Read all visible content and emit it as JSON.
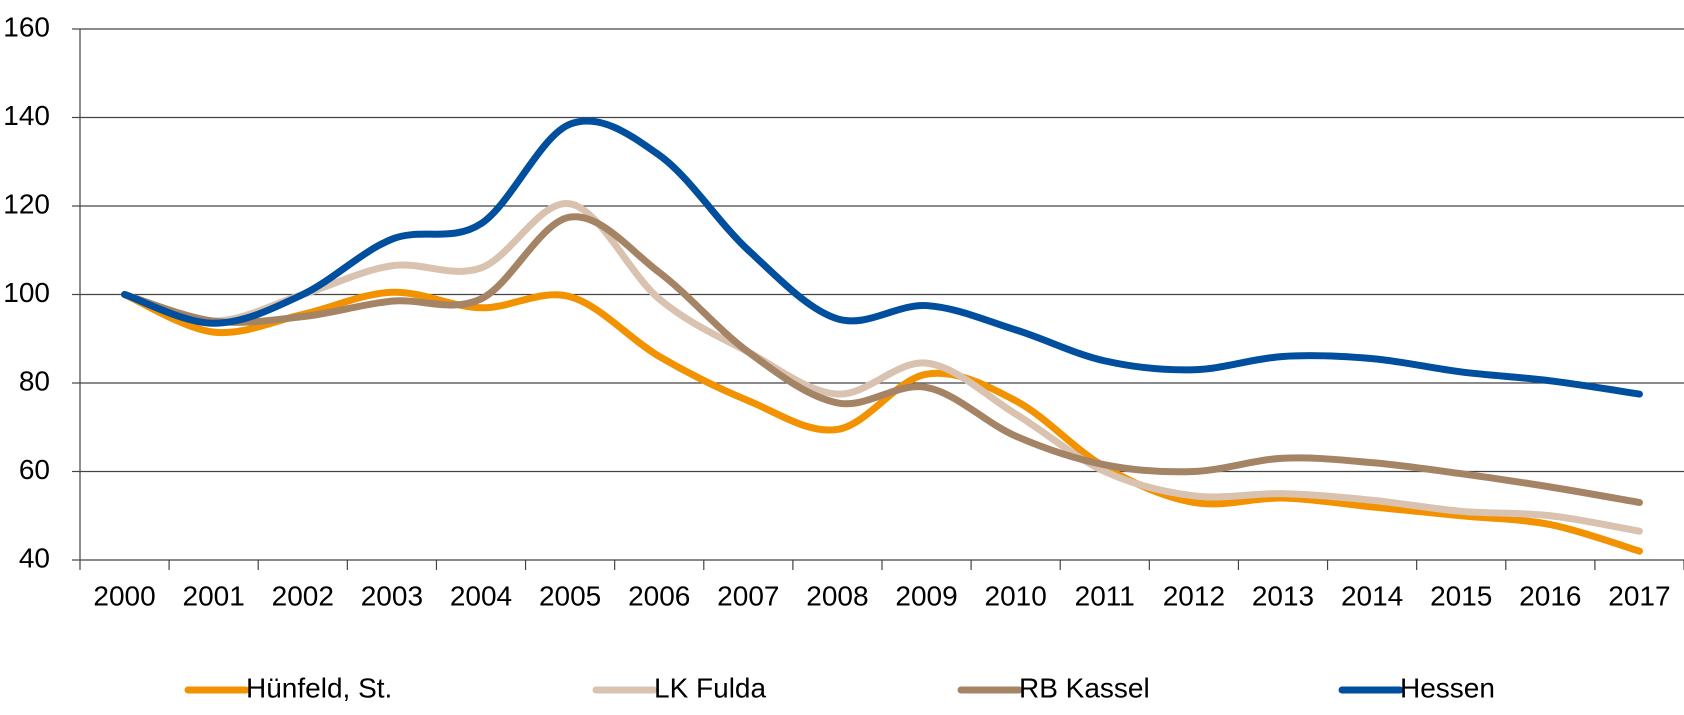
{
  "chart_data": {
    "type": "line",
    "categories": [
      "2000",
      "2001",
      "2002",
      "2003",
      "2004",
      "2005",
      "2006",
      "2007",
      "2008",
      "2009",
      "2010",
      "2011",
      "2012",
      "2013",
      "2014",
      "2015",
      "2016",
      "2017"
    ],
    "series": [
      {
        "name": "Hünfeld, St.",
        "color": "#f39200",
        "values": [
          100,
          91.5,
          95.5,
          100.5,
          97,
          99.5,
          86,
          76,
          69.5,
          82,
          76,
          61,
          53,
          54,
          52,
          50,
          48,
          42
        ]
      },
      {
        "name": "LK Fulda",
        "color": "#d9c3b0",
        "values": [
          100,
          94,
          100,
          106.5,
          106,
          120.5,
          99,
          87,
          77.5,
          84.5,
          73,
          60,
          54.5,
          55,
          53.5,
          51,
          50,
          46.5
        ]
      },
      {
        "name": "RB Kassel",
        "color": "#a58466",
        "values": [
          100,
          94,
          95,
          98.5,
          99,
          117.5,
          105,
          87,
          75.5,
          79,
          68,
          61.5,
          60,
          63,
          62,
          59.5,
          56.5,
          53
        ]
      },
      {
        "name": "Hessen",
        "color": "#004f9f",
        "values": [
          100,
          93.5,
          100,
          112.5,
          116,
          138.5,
          131.5,
          110,
          94.5,
          97.5,
          92,
          85,
          83,
          86,
          85.5,
          82.5,
          80.5,
          77.5
        ]
      }
    ],
    "ylim": [
      40,
      160
    ],
    "yticks": [
      40,
      60,
      80,
      100,
      120,
      140,
      160
    ],
    "grid": true,
    "legend": "bottom"
  }
}
